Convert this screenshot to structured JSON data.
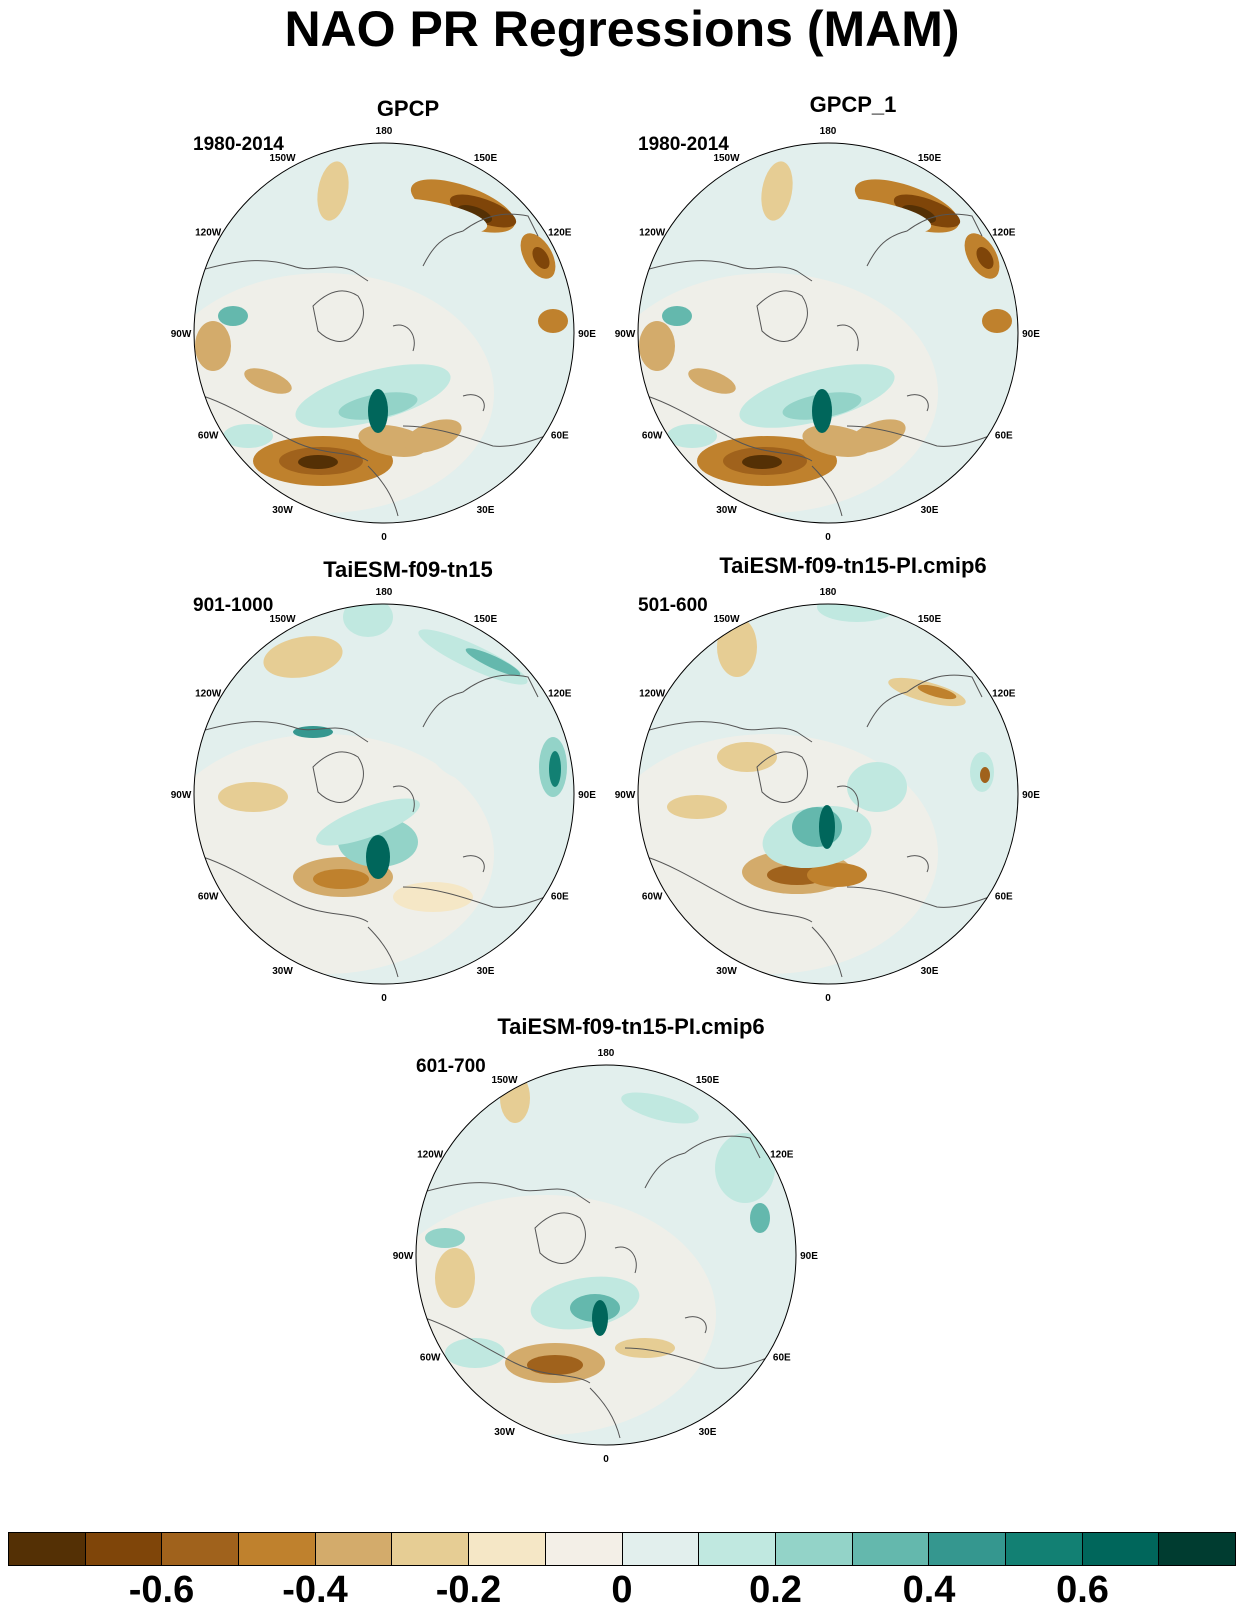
{
  "title": "NAO PR Regressions (MAM)",
  "panels": [
    {
      "title": "GPCP",
      "period": "1980-2014"
    },
    {
      "title": "GPCP_1",
      "period": "1980-2014"
    },
    {
      "title": "TaiESM-f09-tn15",
      "period": "901-1000"
    },
    {
      "title": "TaiESM-f09-tn15-PI.cmip6",
      "period": "501-600"
    },
    {
      "title": "TaiESM-f09-tn15-PI.cmip6",
      "period": "601-700"
    }
  ],
  "longitude_labels": [
    "180",
    "150E",
    "120E",
    "90E",
    "60E",
    "30E",
    "0",
    "30W",
    "60W",
    "90W",
    "120W",
    "150W"
  ],
  "colorbar": {
    "colors": [
      "#543005",
      "#7f4509",
      "#a0621c",
      "#bf812d",
      "#d3ab6b",
      "#e6cd94",
      "#f5e7c6",
      "#f3efe7",
      "#e2efed",
      "#c0e8e0",
      "#93d3c8",
      "#64b8ad",
      "#35978f",
      "#128073",
      "#00665b",
      "#003c30"
    ],
    "tick_labels": [
      "-0.6",
      "-0.4",
      "-0.2",
      "0",
      "0.2",
      "0.4",
      "0.6"
    ]
  }
}
